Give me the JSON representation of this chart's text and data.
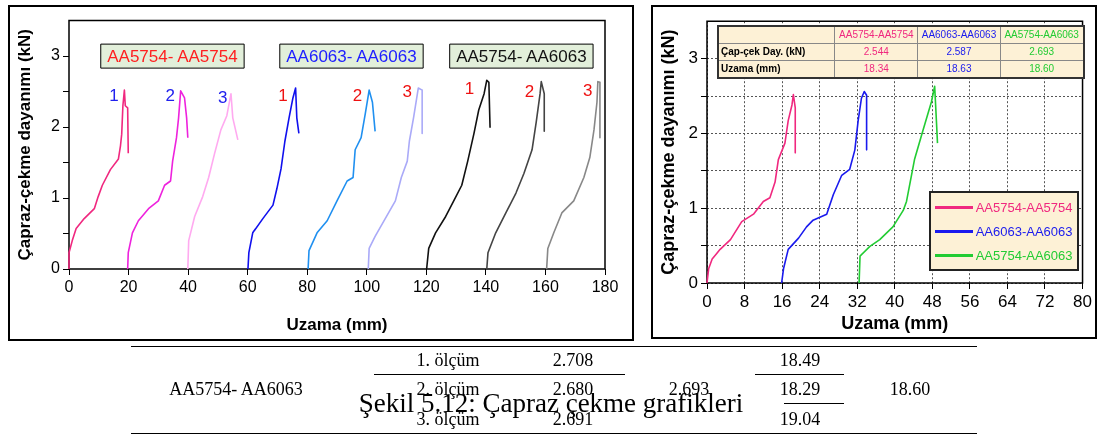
{
  "chart_data": [
    {
      "type": "line",
      "xlabel": "Uzama (mm)",
      "ylabel": "Çapraz-çekme dayanımı (kN)",
      "xlim": [
        0,
        180
      ],
      "ylim": [
        0,
        3.5
      ],
      "xticks": [
        0,
        20,
        40,
        60,
        80,
        100,
        120,
        140,
        160,
        180
      ],
      "yticks": [
        0,
        {
          "value": 0.5,
          "label": null
        },
        1,
        {
          "value": 1.5,
          "label": null
        },
        2,
        {
          "value": 2.5,
          "label": null
        },
        3
      ],
      "grid": false,
      "legend": false,
      "marker": "none",
      "line_style": "solid",
      "series": [
        {
          "color": "#f0287f",
          "x": [
            0,
            0,
            1.1,
            2.4,
            5.1,
            8.5,
            9.8,
            11.2,
            13.9,
            16.6,
            17.3,
            17.7,
            18.1,
            18.6,
            18.9,
            19.7,
            19.9
          ],
          "values": [
            0,
            0.23,
            0.4,
            0.57,
            0.71,
            0.85,
            1.02,
            1.18,
            1.4,
            1.55,
            1.74,
            1.9,
            2.3,
            2.52,
            2.3,
            2.27,
            1.63
          ]
        },
        {
          "color": "#ee22dd",
          "x": [
            19.7,
            19.9,
            21.3,
            23.3,
            26.7,
            30,
            32.1,
            34.1,
            34.8,
            36.1,
            36.8,
            37.5,
            38.8,
            39.5,
            39.9
          ],
          "values": [
            0,
            0.23,
            0.51,
            0.68,
            0.85,
            0.96,
            1.18,
            1.24,
            1.52,
            1.85,
            2.13,
            2.51,
            2.41,
            2.13,
            1.85
          ]
        },
        {
          "color": "#ffaaf0",
          "x": [
            39.9,
            40.2,
            42.2,
            44.9,
            46.9,
            48.9,
            51,
            53,
            54.4,
            55,
            56.7
          ],
          "values": [
            0,
            0.4,
            0.74,
            1.02,
            1.29,
            1.63,
            1.96,
            2.16,
            2.47,
            2.13,
            1.82
          ]
        },
        {
          "color": "#1010ee",
          "x": [
            60.1,
            60.4,
            61.7,
            65.1,
            68.5,
            69.8,
            71.2,
            72.5,
            73.9,
            75.2,
            76.1,
            76.5,
            77.2
          ],
          "values": [
            0,
            0.23,
            0.51,
            0.71,
            0.9,
            1.13,
            1.41,
            1.8,
            2.13,
            2.41,
            2.55,
            2.13,
            1.91
          ]
        },
        {
          "color": "#2090f0",
          "x": [
            80.3,
            80.6,
            83.3,
            86.7,
            90,
            93.4,
            95.4,
            96.1,
            98.1,
            99.5,
            100.8,
            101.9,
            102.8
          ],
          "values": [
            0,
            0.26,
            0.51,
            0.68,
            0.96,
            1.24,
            1.29,
            1.68,
            1.85,
            2.19,
            2.52,
            2.35,
            1.94
          ]
        },
        {
          "color": "#aaaaf8",
          "x": [
            100.5,
            100.8,
            102.8,
            106.2,
            109.6,
            111.6,
            113.6,
            114.3,
            115.7,
            117.3,
            118.6,
            118.6
          ],
          "values": [
            0,
            0.29,
            0.46,
            0.71,
            0.96,
            1.29,
            1.52,
            1.8,
            2.13,
            2.55,
            2.52,
            1.91
          ]
        },
        {
          "color": "#111111",
          "x": [
            120.1,
            120.8,
            123.1,
            126.5,
            129.2,
            131.9,
            133.9,
            136,
            137.6,
            139.4,
            140.3,
            141,
            141.4
          ],
          "values": [
            0,
            0.29,
            0.51,
            0.74,
            0.96,
            1.18,
            1.52,
            1.91,
            2.24,
            2.47,
            2.66,
            2.63,
            1.99
          ]
        },
        {
          "color": "#444444",
          "x": [
            140.3,
            140.7,
            143.3,
            146.7,
            150.1,
            152.8,
            155.5,
            156.9,
            158.2,
            158.6,
            159.6,
            159.6
          ],
          "values": [
            0,
            0.23,
            0.51,
            0.79,
            1.07,
            1.35,
            1.68,
            2.07,
            2.47,
            2.64,
            2.47,
            1.94
          ]
        },
        {
          "color": "#888888",
          "x": [
            160.4,
            160.8,
            162.8,
            165.5,
            169.5,
            172.9,
            174.9,
            176.3,
            177.3,
            177.6,
            178.3,
            178.3
          ],
          "values": [
            0,
            0.29,
            0.51,
            0.79,
            0.96,
            1.29,
            1.57,
            1.96,
            2.35,
            2.64,
            2.63,
            1.85
          ]
        }
      ],
      "annotations": [
        "AA5754- AA5754",
        "AA6063- AA6063",
        "AA5754- AA6063",
        "1",
        "2",
        "3",
        "1",
        "2",
        "3",
        "1",
        "2",
        "3"
      ]
    },
    {
      "type": "line",
      "xlabel": "Uzama (mm)",
      "ylabel": "Çapraz-çekme dayanımı (kN)",
      "xlim": [
        0,
        80
      ],
      "ylim": [
        0,
        3.5
      ],
      "xticks": [
        0,
        8,
        16,
        24,
        32,
        40,
        48,
        56,
        64,
        72,
        80
      ],
      "yticks": [
        0,
        {
          "value": 0.5,
          "label": null
        },
        1,
        {
          "value": 1.5,
          "label": null
        },
        2,
        {
          "value": 2.5,
          "label": null
        },
        3
      ],
      "grid": true,
      "legend": "bottom right",
      "marker": "none",
      "line_style": "solid",
      "series": [
        {
          "name": "AA5754-AA5754",
          "color": "#f0287f",
          "x": [
            0,
            0.35,
            1.1,
            2.8,
            5,
            7.4,
            9.9,
            12,
            13.4,
            14.5,
            15.2,
            16.6,
            17.3,
            18.1,
            18.4,
            18.8,
            18.8
          ],
          "values": [
            0,
            0.19,
            0.32,
            0.45,
            0.58,
            0.82,
            0.92,
            1.09,
            1.14,
            1.35,
            1.65,
            1.87,
            2.17,
            2.38,
            2.52,
            2.34,
            1.74
          ]
        },
        {
          "name": "AA6063-AA6063",
          "color": "#1a1aee",
          "x": [
            15.9,
            16.3,
            17.3,
            19.5,
            21.2,
            22.6,
            25.5,
            26.9,
            28.7,
            30.4,
            31.5,
            32.2,
            32.9,
            33.5,
            34,
            34
          ],
          "values": [
            0,
            0.19,
            0.45,
            0.6,
            0.75,
            0.84,
            0.92,
            1.18,
            1.44,
            1.52,
            1.78,
            2.17,
            2.47,
            2.56,
            2.51,
            1.78
          ]
        },
        {
          "name": "AA5754-AA6063",
          "color": "#22cc33",
          "x": [
            32.4,
            32.6,
            34.7,
            36.8,
            39.6,
            41.8,
            42.5,
            44.2,
            46,
            47.8,
            48.5,
            48.9,
            49.1
          ],
          "values": [
            0,
            0.36,
            0.49,
            0.58,
            0.75,
            0.97,
            1.09,
            1.65,
            2.04,
            2.42,
            2.63,
            2.13,
            1.87
          ]
        }
      ],
      "annotations": [
        "Çap-çek Day. (kN)",
        "2.544",
        "2.587",
        "2.693",
        "Uzama (mm)",
        "18.34",
        "18.63",
        "18.60"
      ]
    },
    {
      "type": "other",
      "title": "Şekil 5.12: Çapraz çekme grafikleri",
      "annotations": [
        "AA5754- AA6063",
        "1. ölçüm",
        "2.708",
        "2. ölçüm",
        "2.680",
        "3. ölçüm",
        "2.691",
        "2.693",
        "18.49",
        "18.29",
        "19.04",
        "18.60"
      ]
    }
  ]
}
